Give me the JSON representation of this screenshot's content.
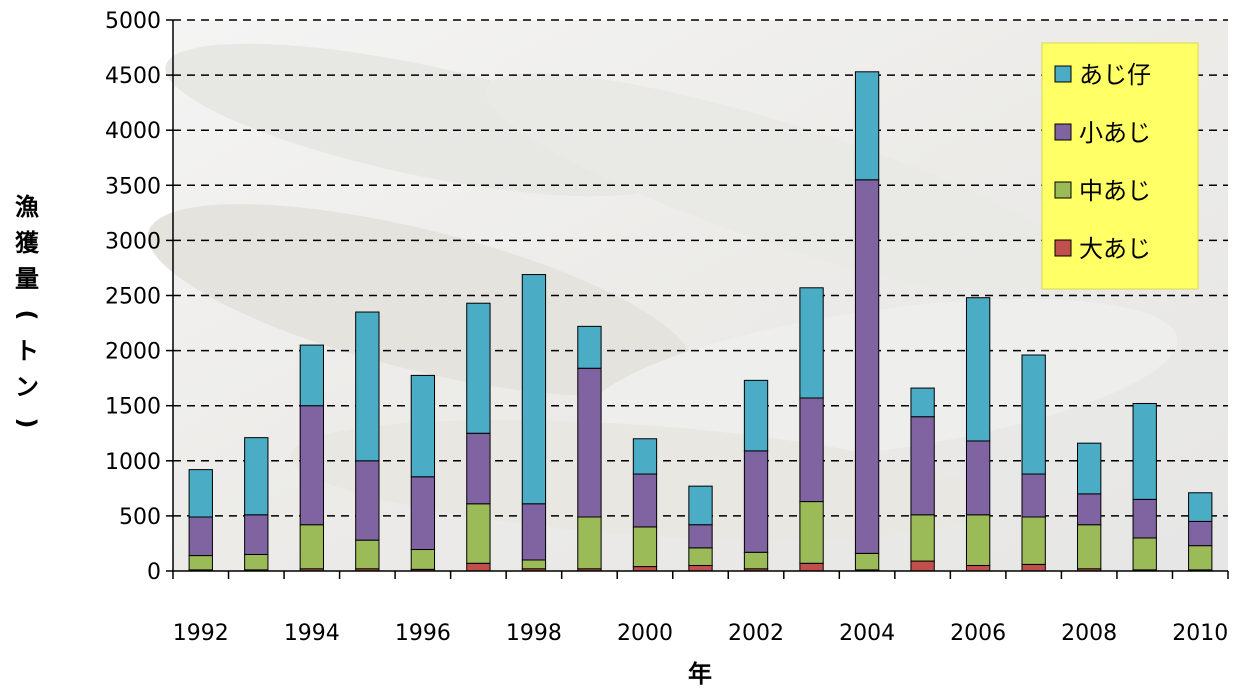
{
  "chart_data": {
    "type": "bar",
    "stacked": true,
    "title": "",
    "xlabel": "年",
    "ylabel": "漁獲量(トン)",
    "ylim": [
      0,
      5000
    ],
    "yticks": [
      0,
      500,
      1000,
      1500,
      2000,
      2500,
      3000,
      3500,
      4000,
      4500,
      5000
    ],
    "grid": "horizontal-dashed",
    "legend_position": "top-right",
    "categories": [
      "1992",
      "1993",
      "1994",
      "1995",
      "1996",
      "1997",
      "1998",
      "1999",
      "2000",
      "2001",
      "2002",
      "2003",
      "2004",
      "2005",
      "2006",
      "2007",
      "2008",
      "2009",
      "2010"
    ],
    "x_tick_labels": [
      "1992",
      "1994",
      "1996",
      "1998",
      "2000",
      "2002",
      "2004",
      "2006",
      "2008",
      "2010"
    ],
    "series": [
      {
        "name": "大あじ",
        "color": "#c0504d",
        "values": [
          10,
          10,
          20,
          20,
          15,
          70,
          20,
          20,
          40,
          50,
          20,
          70,
          10,
          90,
          50,
          60,
          20,
          10,
          10
        ]
      },
      {
        "name": "中あじ",
        "color": "#9bbb59",
        "values": [
          130,
          140,
          400,
          260,
          180,
          540,
          80,
          470,
          360,
          160,
          150,
          560,
          150,
          420,
          460,
          430,
          400,
          290,
          220
        ]
      },
      {
        "name": "小あじ",
        "color": "#8064a2",
        "values": [
          350,
          360,
          1080,
          720,
          660,
          640,
          510,
          1350,
          480,
          210,
          920,
          940,
          3390,
          890,
          670,
          390,
          280,
          350,
          220
        ]
      },
      {
        "name": "あじ仔",
        "color": "#4bacc6",
        "values": [
          430,
          700,
          550,
          1350,
          920,
          1180,
          2080,
          380,
          320,
          350,
          640,
          1000,
          980,
          260,
          1300,
          1080,
          460,
          870,
          260
        ]
      }
    ],
    "legend_order": [
      "あじ仔",
      "小あじ",
      "中あじ",
      "大あじ"
    ]
  }
}
